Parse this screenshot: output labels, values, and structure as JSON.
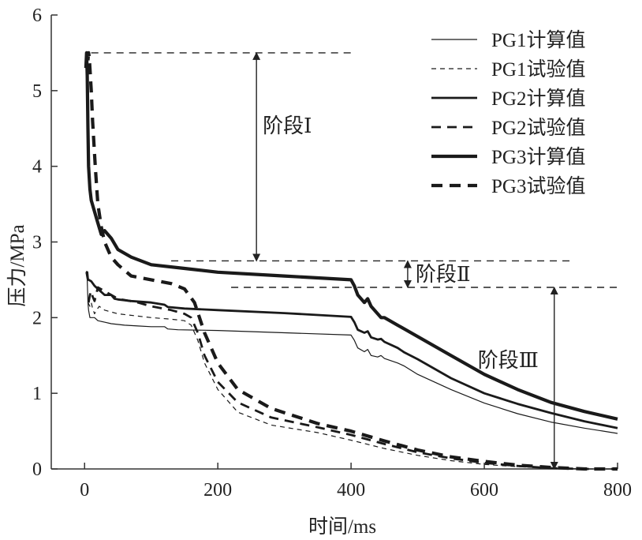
{
  "chart_data": {
    "type": "line",
    "xlabel": "时间/ms",
    "ylabel": "压力/MPa",
    "xlim": [
      -50,
      800
    ],
    "ylim": [
      0,
      6
    ],
    "xticks": [
      0,
      200,
      400,
      600,
      800
    ],
    "yticks": [
      0,
      1,
      2,
      3,
      4,
      5,
      6
    ],
    "legend_position": "top-right",
    "series": [
      {
        "name": "PG1计算值",
        "style": "thin-solid",
        "x": [
          2,
          4,
          5,
          6,
          8,
          10,
          15,
          20,
          30,
          40,
          60,
          80,
          100,
          120,
          125,
          140,
          200,
          300,
          400,
          405,
          410,
          420,
          425,
          430,
          440,
          445,
          450,
          470,
          480,
          500,
          550,
          600,
          650,
          700,
          750,
          800
        ],
        "y": [
          2.6,
          2.5,
          2.2,
          2.1,
          2.0,
          2.0,
          2.0,
          1.96,
          1.94,
          1.92,
          1.9,
          1.89,
          1.88,
          1.88,
          1.85,
          1.84,
          1.83,
          1.8,
          1.77,
          1.7,
          1.6,
          1.55,
          1.58,
          1.5,
          1.48,
          1.5,
          1.46,
          1.4,
          1.36,
          1.25,
          1.05,
          0.87,
          0.73,
          0.62,
          0.54,
          0.47
        ]
      },
      {
        "name": "PG1试验值",
        "style": "thin-dashed",
        "x": [
          5,
          8,
          10,
          12,
          15,
          18,
          22,
          30,
          50,
          100,
          130,
          150,
          160,
          170,
          180,
          200,
          230,
          280,
          350,
          400,
          450,
          500,
          550,
          600,
          650,
          700,
          750,
          800
        ],
        "y": [
          2.2,
          2.15,
          2.2,
          2.12,
          2.05,
          2.1,
          2.15,
          2.1,
          2.05,
          2.0,
          1.98,
          1.96,
          1.9,
          1.7,
          1.4,
          1.05,
          0.75,
          0.58,
          0.48,
          0.38,
          0.27,
          0.18,
          0.11,
          0.06,
          0.03,
          0.01,
          0.0,
          0.0
        ]
      },
      {
        "name": "PG2计算值",
        "style": "medium-solid",
        "x": [
          2,
          4,
          5,
          6,
          10,
          15,
          20,
          30,
          40,
          45,
          50,
          70,
          100,
          120,
          125,
          150,
          200,
          300,
          400,
          405,
          410,
          420,
          425,
          430,
          440,
          445,
          450,
          470,
          480,
          500,
          550,
          600,
          650,
          700,
          750,
          800
        ],
        "y": [
          2.6,
          2.6,
          2.5,
          2.5,
          2.48,
          2.42,
          2.38,
          2.3,
          2.3,
          2.25,
          2.24,
          2.22,
          2.2,
          2.17,
          2.14,
          2.12,
          2.1,
          2.06,
          2.01,
          1.94,
          1.84,
          1.8,
          1.82,
          1.74,
          1.71,
          1.72,
          1.68,
          1.6,
          1.54,
          1.45,
          1.2,
          1.0,
          0.86,
          0.74,
          0.63,
          0.54
        ]
      },
      {
        "name": "PG2试验值",
        "style": "medium-dashed",
        "x": [
          6,
          8,
          10,
          12,
          15,
          20,
          30,
          50,
          80,
          100,
          130,
          150,
          160,
          170,
          180,
          200,
          230,
          280,
          350,
          400,
          450,
          500,
          550,
          600,
          650,
          700,
          750,
          800
        ],
        "y": [
          2.2,
          2.3,
          2.35,
          2.28,
          2.22,
          2.4,
          2.35,
          2.25,
          2.2,
          2.15,
          2.1,
          2.05,
          2.0,
          1.8,
          1.5,
          1.15,
          0.88,
          0.68,
          0.55,
          0.45,
          0.33,
          0.22,
          0.14,
          0.08,
          0.04,
          0.01,
          0.0,
          0.0
        ]
      },
      {
        "name": "PG3计算值",
        "style": "thick-solid",
        "x": [
          2,
          3,
          4,
          5,
          6,
          8,
          10,
          15,
          20,
          25,
          30,
          40,
          50,
          70,
          100,
          150,
          200,
          300,
          400,
          405,
          410,
          420,
          425,
          430,
          440,
          445,
          450,
          470,
          480,
          500,
          550,
          600,
          650,
          700,
          750,
          800
        ],
        "y": [
          5.3,
          5.5,
          5.2,
          4.5,
          4.0,
          3.7,
          3.55,
          3.4,
          3.25,
          3.1,
          3.15,
          3.05,
          2.9,
          2.8,
          2.7,
          2.65,
          2.6,
          2.55,
          2.5,
          2.42,
          2.3,
          2.2,
          2.25,
          2.15,
          2.05,
          2.0,
          2.0,
          1.9,
          1.85,
          1.75,
          1.5,
          1.25,
          1.05,
          0.88,
          0.76,
          0.66
        ]
      },
      {
        "name": "PG3试验值",
        "style": "thick-dashed",
        "x": [
          5,
          6,
          7,
          8,
          10,
          12,
          14,
          16,
          18,
          20,
          25,
          30,
          40,
          50,
          70,
          100,
          130,
          150,
          165,
          180,
          200,
          230,
          280,
          350,
          400,
          450,
          500,
          550,
          600,
          650,
          700,
          750,
          800
        ],
        "y": [
          5.4,
          5.5,
          5.45,
          5.3,
          5.0,
          4.6,
          4.3,
          4.0,
          3.75,
          3.5,
          3.2,
          3.0,
          2.8,
          2.7,
          2.55,
          2.5,
          2.45,
          2.38,
          2.2,
          1.8,
          1.4,
          1.05,
          0.8,
          0.6,
          0.5,
          0.37,
          0.25,
          0.16,
          0.1,
          0.05,
          0.02,
          0.0,
          0.0
        ]
      }
    ],
    "reference_lines": [
      {
        "y": 5.5,
        "x_start": 10,
        "x_end": 400
      },
      {
        "y": 2.75,
        "x_start": 130,
        "x_end": 730
      },
      {
        "y": 2.4,
        "x_start": 220,
        "x_end": 800
      }
    ],
    "annotations": [
      {
        "label": "阶段Ⅰ",
        "x": 258,
        "y_from": 5.5,
        "y_to": 2.75
      },
      {
        "label": "阶段Ⅱ",
        "x": 485,
        "y_from": 2.75,
        "y_to": 2.4
      },
      {
        "label": "阶段Ⅲ",
        "x": 705,
        "y_from": 2.4,
        "y_to": 0
      }
    ]
  }
}
